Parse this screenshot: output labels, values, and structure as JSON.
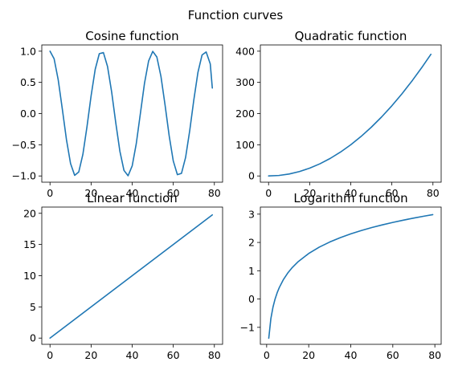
{
  "figure": {
    "title": "Function curves"
  },
  "colors": {
    "series": "#1f77b4",
    "axes": "#000000",
    "background": "#ffffff"
  },
  "chart_data": [
    {
      "type": "line",
      "title": "Cosine function",
      "xlabel": "",
      "ylabel": "",
      "xlim": [
        -4,
        84
      ],
      "ylim": [
        -1.1,
        1.1
      ],
      "grid": false,
      "xticks": [
        0,
        20,
        40,
        60,
        80
      ],
      "yticks": [
        -1.0,
        -0.5,
        0.0,
        0.5,
        1.0
      ],
      "xtick_labels": [
        "0",
        "20",
        "40",
        "60",
        "80"
      ],
      "ytick_labels": [
        "−1.0",
        "−0.5",
        "0.0",
        "0.5",
        "1.0"
      ],
      "series": [
        {
          "function": "cos(x/4)",
          "x": [
            0,
            2,
            4,
            6,
            8,
            10,
            12,
            14,
            16,
            18,
            20,
            22,
            24,
            26,
            28,
            30,
            32,
            34,
            36,
            38,
            40,
            42,
            44,
            46,
            48,
            50,
            52,
            54,
            56,
            58,
            60,
            62,
            64,
            66,
            68,
            70,
            72,
            74,
            76,
            78,
            79
          ],
          "y": [
            1.0,
            0.878,
            0.54,
            0.071,
            -0.416,
            -0.801,
            -0.99,
            -0.936,
            -0.654,
            -0.211,
            0.284,
            0.709,
            0.96,
            0.977,
            0.754,
            0.347,
            -0.146,
            -0.602,
            -0.911,
            -0.997,
            -0.839,
            -0.48,
            0.004,
            0.487,
            0.844,
            0.997,
            0.907,
            0.595,
            0.137,
            -0.355,
            -0.76,
            -0.979,
            -0.958,
            -0.702,
            -0.275,
            0.219,
            0.66,
            0.939,
            0.988,
            0.796,
            0.409
          ]
        }
      ]
    },
    {
      "type": "line",
      "title": "Quadratic function",
      "xlabel": "",
      "ylabel": "",
      "xlim": [
        -4,
        84
      ],
      "ylim": [
        -20,
        420
      ],
      "grid": false,
      "xticks": [
        0,
        20,
        40,
        60,
        80
      ],
      "yticks": [
        0,
        100,
        200,
        300,
        400
      ],
      "xtick_labels": [
        "0",
        "20",
        "40",
        "60",
        "80"
      ],
      "ytick_labels": [
        "0",
        "100",
        "200",
        "300",
        "400"
      ],
      "series": [
        {
          "function": "x^2/16",
          "x": [
            0,
            5,
            10,
            15,
            20,
            25,
            30,
            35,
            40,
            45,
            50,
            55,
            60,
            65,
            70,
            75,
            79
          ],
          "y": [
            0,
            1.56,
            6.25,
            14.06,
            25,
            39.06,
            56.25,
            76.56,
            100,
            126.56,
            156.25,
            189.06,
            225,
            264.06,
            306.25,
            351.56,
            390.06
          ]
        }
      ]
    },
    {
      "type": "line",
      "title": "Linear function",
      "xlabel": "",
      "ylabel": "",
      "xlim": [
        -4,
        84
      ],
      "ylim": [
        -1,
        21
      ],
      "grid": false,
      "xticks": [
        0,
        20,
        40,
        60,
        80
      ],
      "yticks": [
        0,
        5,
        10,
        15,
        20
      ],
      "xtick_labels": [
        "0",
        "20",
        "40",
        "60",
        "80"
      ],
      "ytick_labels": [
        "0",
        "5",
        "10",
        "15",
        "20"
      ],
      "series": [
        {
          "function": "x/4",
          "x": [
            0,
            79
          ],
          "y": [
            0,
            19.75
          ]
        }
      ]
    },
    {
      "type": "line",
      "title": "Logarithm function",
      "xlabel": "",
      "ylabel": "",
      "xlim": [
        -3,
        83
      ],
      "ylim": [
        -1.6,
        3.25
      ],
      "grid": false,
      "xticks": [
        0,
        20,
        40,
        60,
        80
      ],
      "yticks": [
        -1,
        0,
        1,
        2,
        3
      ],
      "xtick_labels": [
        "0",
        "20",
        "40",
        "60",
        "80"
      ],
      "ytick_labels": [
        "−1",
        "0",
        "1",
        "2",
        "3"
      ],
      "series": [
        {
          "function": "ln(x/4)",
          "x": [
            1,
            2,
            3,
            4,
            5,
            6,
            8,
            10,
            12,
            15,
            20,
            25,
            30,
            35,
            40,
            45,
            50,
            55,
            60,
            65,
            70,
            75,
            79
          ],
          "y": [
            -1.386,
            -0.693,
            -0.288,
            0.0,
            0.223,
            0.405,
            0.693,
            0.916,
            1.099,
            1.322,
            1.609,
            1.833,
            2.015,
            2.169,
            2.303,
            2.42,
            2.526,
            2.621,
            2.708,
            2.788,
            2.862,
            2.931,
            2.983
          ]
        }
      ]
    }
  ]
}
